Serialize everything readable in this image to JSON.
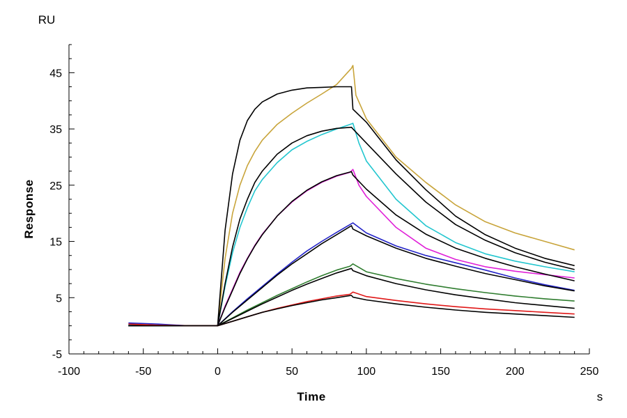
{
  "chart_data": {
    "type": "line",
    "title": "",
    "xlabel": "Time",
    "ylabel": "Response",
    "x_unit": "s",
    "y_unit": "RU",
    "xlim": [
      -100,
      250
    ],
    "ylim": [
      -5,
      50
    ],
    "x_ticks": [
      -100,
      -50,
      0,
      50,
      100,
      150,
      200,
      250
    ],
    "x_tick_labels": [
      "-100",
      "-50",
      "0",
      "50",
      "100",
      "150",
      "200",
      "250"
    ],
    "y_ticks": [
      -5,
      5,
      15,
      25,
      35,
      45
    ],
    "y_tick_labels": [
      "-5",
      "5",
      "15",
      "25",
      "35",
      "45"
    ],
    "grid": false,
    "legend": "none",
    "series": [
      {
        "color": "#c8a43a",
        "points": [
          [
            -60,
            0.0
          ],
          [
            -40,
            0.0
          ],
          [
            -20,
            0.0
          ],
          [
            0,
            0.0
          ],
          [
            5,
            12
          ],
          [
            10,
            20
          ],
          [
            15,
            25
          ],
          [
            20,
            28.5
          ],
          [
            25,
            31
          ],
          [
            30,
            33
          ],
          [
            40,
            35.8
          ],
          [
            50,
            37.8
          ],
          [
            60,
            39.6
          ],
          [
            70,
            41.2
          ],
          [
            80,
            42.9
          ],
          [
            90,
            45.8
          ],
          [
            91,
            46.3
          ],
          [
            93,
            41
          ],
          [
            100,
            36.8
          ],
          [
            120,
            30.0
          ],
          [
            140,
            25.5
          ],
          [
            160,
            21.5
          ],
          [
            180,
            18.5
          ],
          [
            200,
            16.5
          ],
          [
            220,
            15.0
          ],
          [
            240,
            13.5
          ]
        ]
      },
      {
        "color": "#000000",
        "points": [
          [
            -60,
            0.0
          ],
          [
            -40,
            0.0
          ],
          [
            -20,
            0.0
          ],
          [
            0,
            0.0
          ],
          [
            5,
            17
          ],
          [
            10,
            27
          ],
          [
            15,
            33
          ],
          [
            20,
            36.5
          ],
          [
            25,
            38.5
          ],
          [
            30,
            39.8
          ],
          [
            40,
            41.2
          ],
          [
            50,
            41.9
          ],
          [
            60,
            42.3
          ],
          [
            70,
            42.4
          ],
          [
            80,
            42.5
          ],
          [
            90,
            42.5
          ],
          [
            91,
            38.5
          ],
          [
            100,
            36.2
          ],
          [
            120,
            29.5
          ],
          [
            140,
            24.2
          ],
          [
            160,
            19.5
          ],
          [
            180,
            16.2
          ],
          [
            200,
            13.8
          ],
          [
            220,
            12.0
          ],
          [
            240,
            10.7
          ]
        ]
      },
      {
        "color": "#22c6cf",
        "points": [
          [
            -60,
            0.2
          ],
          [
            -40,
            0.1
          ],
          [
            -20,
            0.0
          ],
          [
            0,
            0.0
          ],
          [
            5,
            7
          ],
          [
            10,
            13
          ],
          [
            15,
            17.5
          ],
          [
            20,
            21
          ],
          [
            25,
            24
          ],
          [
            30,
            26
          ],
          [
            40,
            29
          ],
          [
            50,
            31.3
          ],
          [
            60,
            32.8
          ],
          [
            70,
            34
          ],
          [
            80,
            35
          ],
          [
            89,
            35.8
          ],
          [
            91,
            36
          ],
          [
            95,
            32.5
          ],
          [
            100,
            29.3
          ],
          [
            120,
            22.5
          ],
          [
            140,
            17.8
          ],
          [
            160,
            14.8
          ],
          [
            180,
            12.8
          ],
          [
            200,
            11.5
          ],
          [
            220,
            10.5
          ],
          [
            240,
            9.6
          ]
        ]
      },
      {
        "color": "#000000",
        "points": [
          [
            -60,
            0.0
          ],
          [
            -40,
            0.0
          ],
          [
            -20,
            0.0
          ],
          [
            0,
            0.0
          ],
          [
            5,
            7.5
          ],
          [
            10,
            14
          ],
          [
            15,
            19
          ],
          [
            20,
            22.5
          ],
          [
            25,
            25.5
          ],
          [
            30,
            27.5
          ],
          [
            40,
            30.5
          ],
          [
            50,
            32.5
          ],
          [
            60,
            33.8
          ],
          [
            70,
            34.6
          ],
          [
            80,
            35.1
          ],
          [
            90,
            35.3
          ],
          [
            91,
            35
          ],
          [
            100,
            32.5
          ],
          [
            120,
            27
          ],
          [
            140,
            22
          ],
          [
            160,
            18
          ],
          [
            180,
            15.2
          ],
          [
            200,
            13
          ],
          [
            220,
            11.3
          ],
          [
            240,
            10.0
          ]
        ]
      },
      {
        "color": "#e020d8",
        "points": [
          [
            -60,
            0.3
          ],
          [
            -40,
            0.1
          ],
          [
            -20,
            0.0
          ],
          [
            0,
            0.0
          ],
          [
            5,
            3.5
          ],
          [
            10,
            6.5
          ],
          [
            15,
            9.5
          ],
          [
            20,
            12
          ],
          [
            25,
            14.3
          ],
          [
            30,
            16.3
          ],
          [
            40,
            19.5
          ],
          [
            50,
            22
          ],
          [
            60,
            24
          ],
          [
            70,
            25.5
          ],
          [
            80,
            26.6
          ],
          [
            89,
            27.3
          ],
          [
            91,
            27.8
          ],
          [
            95,
            25
          ],
          [
            100,
            23
          ],
          [
            120,
            17.5
          ],
          [
            140,
            13.8
          ],
          [
            160,
            11.8
          ],
          [
            180,
            10.5
          ],
          [
            200,
            9.7
          ],
          [
            220,
            9.1
          ],
          [
            240,
            8.5
          ]
        ]
      },
      {
        "color": "#000000",
        "points": [
          [
            -60,
            0.0
          ],
          [
            -40,
            0.0
          ],
          [
            -20,
            0.0
          ],
          [
            0,
            0.0
          ],
          [
            5,
            3.3
          ],
          [
            10,
            6.3
          ],
          [
            15,
            9.3
          ],
          [
            20,
            11.9
          ],
          [
            25,
            14.2
          ],
          [
            30,
            16.2
          ],
          [
            40,
            19.5
          ],
          [
            50,
            22.1
          ],
          [
            60,
            24.1
          ],
          [
            70,
            25.6
          ],
          [
            80,
            26.7
          ],
          [
            90,
            27.4
          ],
          [
            91,
            26.8
          ],
          [
            100,
            24.3
          ],
          [
            120,
            19.7
          ],
          [
            140,
            16.3
          ],
          [
            160,
            13.8
          ],
          [
            180,
            12.0
          ],
          [
            200,
            10.5
          ],
          [
            220,
            9.2
          ],
          [
            240,
            8.0
          ]
        ]
      },
      {
        "color": "#2323c8",
        "points": [
          [
            -60,
            0.5
          ],
          [
            -40,
            0.3
          ],
          [
            -20,
            0.0
          ],
          [
            0,
            0.0
          ],
          [
            10,
            2.5
          ],
          [
            20,
            4.8
          ],
          [
            30,
            7.0
          ],
          [
            40,
            9.2
          ],
          [
            50,
            11.3
          ],
          [
            60,
            13.3
          ],
          [
            70,
            15.0
          ],
          [
            80,
            16.6
          ],
          [
            89,
            18.0
          ],
          [
            91,
            18.3
          ],
          [
            100,
            16.5
          ],
          [
            120,
            14.2
          ],
          [
            140,
            12.5
          ],
          [
            160,
            11.2
          ],
          [
            180,
            9.9
          ],
          [
            200,
            8.5
          ],
          [
            220,
            7.3
          ],
          [
            240,
            6.3
          ]
        ]
      },
      {
        "color": "#000000",
        "points": [
          [
            -60,
            0.0
          ],
          [
            -40,
            0.0
          ],
          [
            -20,
            0.0
          ],
          [
            0,
            0.0
          ],
          [
            10,
            2.4
          ],
          [
            20,
            4.6
          ],
          [
            30,
            6.8
          ],
          [
            40,
            9.0
          ],
          [
            50,
            11.0
          ],
          [
            60,
            12.8
          ],
          [
            70,
            14.6
          ],
          [
            80,
            16.2
          ],
          [
            90,
            17.8
          ],
          [
            91,
            17.2
          ],
          [
            100,
            16.0
          ],
          [
            120,
            13.8
          ],
          [
            140,
            12.0
          ],
          [
            160,
            10.6
          ],
          [
            180,
            9.3
          ],
          [
            200,
            8.2
          ],
          [
            220,
            7.1
          ],
          [
            240,
            6.2
          ]
        ]
      },
      {
        "color": "#2f7d2f",
        "points": [
          [
            -60,
            0.3
          ],
          [
            -40,
            0.1
          ],
          [
            -20,
            0.0
          ],
          [
            0,
            0.0
          ],
          [
            10,
            1.4
          ],
          [
            20,
            2.8
          ],
          [
            30,
            4.1
          ],
          [
            40,
            5.4
          ],
          [
            50,
            6.6
          ],
          [
            60,
            7.8
          ],
          [
            70,
            8.9
          ],
          [
            80,
            9.9
          ],
          [
            89,
            10.6
          ],
          [
            91,
            11.0
          ],
          [
            100,
            9.6
          ],
          [
            120,
            8.4
          ],
          [
            140,
            7.4
          ],
          [
            160,
            6.6
          ],
          [
            180,
            5.9
          ],
          [
            200,
            5.3
          ],
          [
            220,
            4.8
          ],
          [
            240,
            4.4
          ]
        ]
      },
      {
        "color": "#000000",
        "points": [
          [
            -60,
            0.0
          ],
          [
            -40,
            0.0
          ],
          [
            -20,
            0.0
          ],
          [
            0,
            0.0
          ],
          [
            10,
            1.3
          ],
          [
            20,
            2.6
          ],
          [
            30,
            3.9
          ],
          [
            40,
            5.1
          ],
          [
            50,
            6.3
          ],
          [
            60,
            7.4
          ],
          [
            70,
            8.4
          ],
          [
            80,
            9.4
          ],
          [
            90,
            10.2
          ],
          [
            91,
            9.8
          ],
          [
            100,
            8.9
          ],
          [
            120,
            7.5
          ],
          [
            140,
            6.4
          ],
          [
            160,
            5.5
          ],
          [
            180,
            4.8
          ],
          [
            200,
            4.1
          ],
          [
            220,
            3.6
          ],
          [
            240,
            3.1
          ]
        ]
      },
      {
        "color": "#e01818",
        "points": [
          [
            -60,
            0.3
          ],
          [
            -40,
            0.1
          ],
          [
            -20,
            0.0
          ],
          [
            0,
            0.0
          ],
          [
            10,
            0.8
          ],
          [
            20,
            1.6
          ],
          [
            30,
            2.4
          ],
          [
            40,
            3.1
          ],
          [
            50,
            3.7
          ],
          [
            60,
            4.3
          ],
          [
            70,
            4.8
          ],
          [
            80,
            5.3
          ],
          [
            89,
            5.6
          ],
          [
            91,
            6.0
          ],
          [
            100,
            5.2
          ],
          [
            120,
            4.5
          ],
          [
            140,
            3.9
          ],
          [
            160,
            3.4
          ],
          [
            180,
            3.0
          ],
          [
            200,
            2.7
          ],
          [
            220,
            2.4
          ],
          [
            240,
            2.1
          ]
        ]
      },
      {
        "color": "#000000",
        "points": [
          [
            -60,
            0.0
          ],
          [
            -40,
            0.0
          ],
          [
            -20,
            0.0
          ],
          [
            0,
            0.0
          ],
          [
            10,
            0.8
          ],
          [
            20,
            1.6
          ],
          [
            30,
            2.4
          ],
          [
            40,
            3.0
          ],
          [
            50,
            3.6
          ],
          [
            60,
            4.1
          ],
          [
            70,
            4.6
          ],
          [
            80,
            5.0
          ],
          [
            90,
            5.4
          ],
          [
            91,
            5.1
          ],
          [
            100,
            4.6
          ],
          [
            120,
            3.9
          ],
          [
            140,
            3.3
          ],
          [
            160,
            2.8
          ],
          [
            180,
            2.4
          ],
          [
            200,
            2.1
          ],
          [
            220,
            1.8
          ],
          [
            240,
            1.5
          ]
        ]
      }
    ]
  }
}
